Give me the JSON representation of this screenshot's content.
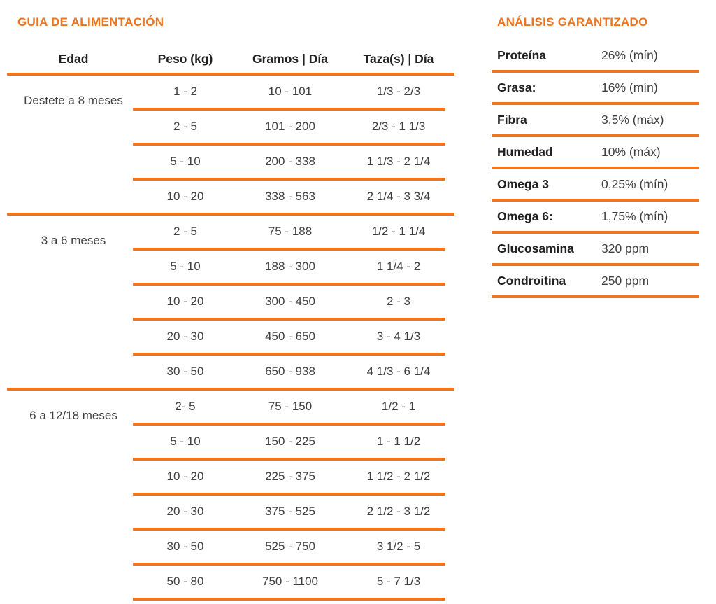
{
  "colors": {
    "accent_orange": "#F0741E",
    "heading_text": "#212121",
    "body_text": "#404040",
    "background": "#FFFFFF"
  },
  "feeding_guide": {
    "title": "GUIA DE ALIMENTACIÓN",
    "columns": [
      "Edad",
      "Peso (kg)",
      "Gramos | Día",
      "Taza(s) | Día"
    ],
    "groups": [
      {
        "age": "Destete a 8 meses",
        "rows": [
          {
            "peso": "1 - 2",
            "gramos": "10 - 101",
            "tazas": "1/3 - 2/3"
          },
          {
            "peso": "2 - 5",
            "gramos": "101 - 200",
            "tazas": "2/3 - 1 1/3"
          },
          {
            "peso": "5 - 10",
            "gramos": "200 - 338",
            "tazas": "1 1/3 - 2 1/4"
          },
          {
            "peso": "10 - 20",
            "gramos": "338 - 563",
            "tazas": "2 1/4 - 3 3/4"
          }
        ]
      },
      {
        "age": "3 a 6 meses",
        "rows": [
          {
            "peso": "2 - 5",
            "gramos": "75 - 188",
            "tazas": "1/2 - 1 1/4"
          },
          {
            "peso": "5 - 10",
            "gramos": "188 - 300",
            "tazas": "1 1/4 - 2"
          },
          {
            "peso": "10 - 20",
            "gramos": "300 - 450",
            "tazas": "2 - 3"
          },
          {
            "peso": "20 - 30",
            "gramos": "450 - 650",
            "tazas": "3 - 4 1/3"
          },
          {
            "peso": "30 - 50",
            "gramos": "650 - 938",
            "tazas": "4 1/3 - 6 1/4"
          }
        ]
      },
      {
        "age": "6 a 12/18 meses",
        "rows": [
          {
            "peso": "2- 5",
            "gramos": "75 - 150",
            "tazas": "1/2 - 1"
          },
          {
            "peso": "5 - 10",
            "gramos": "150 - 225",
            "tazas": "1 - 1 1/2"
          },
          {
            "peso": "10 - 20",
            "gramos": "225 - 375",
            "tazas": "1 1/2 - 2 1/2"
          },
          {
            "peso": "20 - 30",
            "gramos": "375 - 525",
            "tazas": "2 1/2 - 3 1/2"
          },
          {
            "peso": "30 - 50",
            "gramos": "525 - 750",
            "tazas": "3 1/2 - 5"
          },
          {
            "peso": "50 - 80",
            "gramos": "750 - 1100",
            "tazas": "5 - 7 1/3"
          }
        ]
      }
    ]
  },
  "guaranteed_analysis": {
    "title": "ANÁLISIS GARANTIZADO",
    "rows": [
      {
        "label": "Proteína",
        "value": "26% (mín)"
      },
      {
        "label": "Grasa:",
        "value": "16% (mín)"
      },
      {
        "label": "Fibra",
        "value": "3,5% (máx)"
      },
      {
        "label": "Humedad",
        "value": "10% (máx)"
      },
      {
        "label": "Omega 3",
        "value": "0,25% (mín)"
      },
      {
        "label": "Omega 6:",
        "value": "1,75% (mín)"
      },
      {
        "label": "Glucosamina",
        "value": "320 ppm"
      },
      {
        "label": "Condroitina",
        "value": "250 ppm"
      }
    ]
  }
}
